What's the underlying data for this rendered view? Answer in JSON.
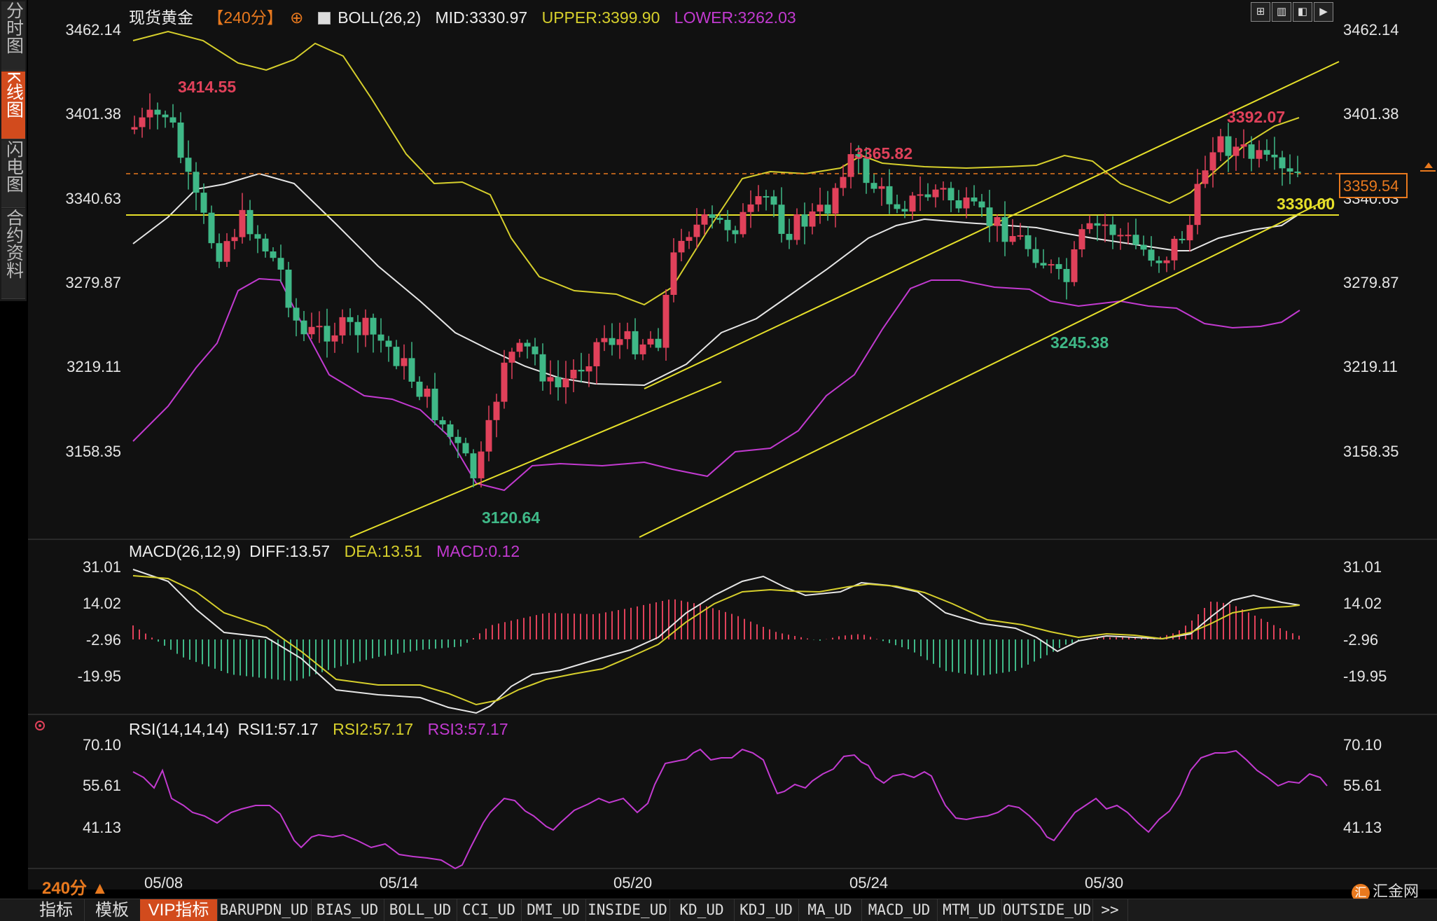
{
  "side_tabs": [
    {
      "label": "分时图",
      "active": false
    },
    {
      "label": "K线图",
      "active": true
    },
    {
      "label": "闪电图",
      "active": false
    },
    {
      "label": "合约资料",
      "active": false
    }
  ],
  "header": {
    "symbol": "现货黄金",
    "period_tag": "【240分】",
    "indicator_name": "BOLL(26,2)",
    "mid": "MID:3330.97",
    "upper": "UPPER:3399.90",
    "lower": "LOWER:3262.03"
  },
  "toolbar_buttons": [
    "layout-icon",
    "bar-icon",
    "prev-icon",
    "next-icon"
  ],
  "price_axis": {
    "ticks": [
      "3462.14",
      "3401.38",
      "3340.63",
      "3279.87",
      "3219.11",
      "3158.35"
    ]
  },
  "price_labels": {
    "high1": "3414.55",
    "low1": "3120.64",
    "high2": "3365.82",
    "low2": "3245.38",
    "high3": "3392.07",
    "current": "3359.54",
    "support": "3330.00"
  },
  "macd": {
    "title": "MACD(26,12,9)",
    "diff": "DIFF:13.57",
    "dea": "DEA:13.51",
    "macd": "MACD:0.12",
    "ticks": [
      "31.01",
      "14.02",
      "-2.96",
      "-19.95"
    ]
  },
  "rsi": {
    "title": "RSI(14,14,14)",
    "rsi1": "RSI1:57.17",
    "rsi2": "RSI2:57.17",
    "rsi3": "RSI3:57.17",
    "ticks": [
      "70.10",
      "55.61",
      "41.13"
    ]
  },
  "dates": [
    "05/08",
    "05/14",
    "05/20",
    "05/24",
    "05/30"
  ],
  "period": "240分 ▲",
  "bottom_tabs": [
    "指标",
    "模板",
    "VIP指标",
    "BARUPDN_UD",
    "BIAS_UD",
    "BOLL_UD",
    "CCI_UD",
    "DMI_UD",
    "INSIDE_UD",
    "KD_UD",
    "KDJ_UD",
    "MA_UD",
    "MACD_UD",
    "MTM_UD",
    "OUTSIDE_UD",
    ">>"
  ],
  "bottom_active": "VIP指标",
  "logo": {
    "glyph": "汇",
    "text": "汇金网"
  },
  "colors": {
    "up": "#e0415a",
    "down": "#3fb887",
    "upper": "#d6cf2c",
    "mid": "#e6e6e6",
    "lower": "#c23ad0",
    "trend": "#e6e02a",
    "rsi": "#c23ad0"
  }
}
